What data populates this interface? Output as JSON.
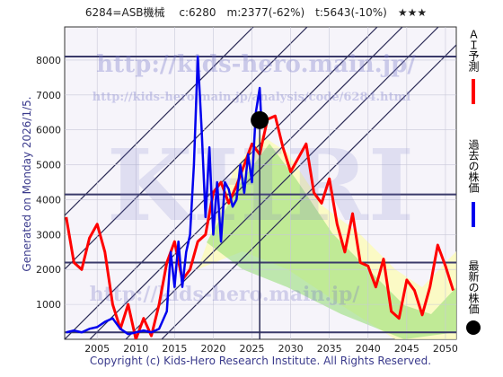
{
  "chart_data": {
    "type": "line",
    "title": "6284=ASB機械　 c:6280　m:2377(-62%)　t:5643(-10%)　★★★",
    "y_label": "Generated on Monday 2026/1/5.",
    "footer": "Copyright (c) Kids-Hero Research Institute. All Rights Reserved.",
    "watermarks": [
      "http://kids-hero.main.jp/",
      "http://kids-hero.main.jp/analysis/code/6284.html",
      "KHRI",
      "http://kids-hero.main.jp/"
    ],
    "xlim": [
      2000.8,
      2051.4
    ],
    "ylim": [
      0,
      8950
    ],
    "xticks": [
      2005,
      2010,
      2015,
      2020,
      2025,
      2030,
      2035,
      2040,
      2045,
      2050
    ],
    "yticks": [
      1000,
      2000,
      3000,
      4000,
      5000,
      6000,
      7000,
      8000
    ],
    "grid": true,
    "levels": [
      8100,
      4150,
      2200,
      200
    ],
    "series": [
      {
        "name": "ＡＩ予測",
        "color": "#ff0000",
        "x": [
          2001,
          2002,
          2003,
          2004,
          2005,
          2006,
          2007,
          2008,
          2009,
          2010,
          2011,
          2012,
          2013,
          2014,
          2015,
          2016,
          2017,
          2018,
          2019,
          2020,
          2021,
          2022,
          2023,
          2024,
          2025,
          2026,
          2027,
          2028,
          2029,
          2030,
          2031,
          2032,
          2033,
          2034,
          2035,
          2036,
          2037,
          2038,
          2039,
          2040,
          2041,
          2042,
          2043,
          2044,
          2045,
          2046,
          2047,
          2048,
          2049,
          2050,
          2051
        ],
        "values": [
          3500,
          2200,
          2000,
          2900,
          3300,
          2500,
          1000,
          300,
          1000,
          0,
          600,
          100,
          1000,
          2200,
          2800,
          1700,
          2000,
          2800,
          3000,
          4200,
          4500,
          3900,
          4400,
          5000,
          5600,
          5300,
          6300,
          6400,
          5500,
          4800,
          5200,
          5600,
          4200,
          3900,
          4600,
          3300,
          2500,
          3600,
          2200,
          2100,
          1500,
          2300,
          800,
          600,
          1700,
          1400,
          700,
          1500,
          2700,
          2100,
          1400
        ]
      },
      {
        "name": "過去の株価",
        "color": "#0000ee",
        "x": [
          2001,
          2002,
          2003,
          2004,
          2005,
          2006,
          2007,
          2008,
          2009,
          2010,
          2011,
          2012,
          2013,
          2014,
          2014.5,
          2015,
          2015.5,
          2016,
          2016.5,
          2017,
          2017.5,
          2018,
          2018.5,
          2019,
          2019.5,
          2020,
          2020.5,
          2021,
          2021.5,
          2022,
          2022.5,
          2023,
          2023.5,
          2024,
          2024.5,
          2025,
          2025.5,
          2026,
          2026.2
        ],
        "values": [
          200,
          250,
          200,
          300,
          350,
          500,
          600,
          300,
          150,
          200,
          250,
          200,
          300,
          800,
          2500,
          1500,
          2800,
          1500,
          2500,
          3000,
          5000,
          8100,
          6000,
          3500,
          5500,
          3000,
          4500,
          2800,
          4500,
          4300,
          3800,
          4000,
          5000,
          4200,
          5300,
          4500,
          6500,
          7200,
          6280
        ]
      }
    ],
    "latest": {
      "name": "最新の株価",
      "x": 2026,
      "value": 6280
    }
  }
}
